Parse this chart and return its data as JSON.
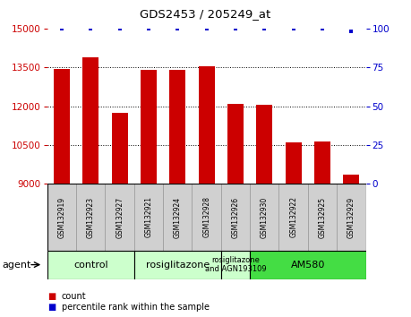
{
  "title": "GDS2453 / 205249_at",
  "samples": [
    "GSM132919",
    "GSM132923",
    "GSM132927",
    "GSM132921",
    "GSM132924",
    "GSM132928",
    "GSM132926",
    "GSM132930",
    "GSM132922",
    "GSM132925",
    "GSM132929"
  ],
  "counts": [
    13450,
    13900,
    11750,
    13400,
    13400,
    13550,
    12100,
    12050,
    10600,
    10650,
    9350
  ],
  "percentiles": [
    100,
    100,
    100,
    100,
    100,
    100,
    100,
    100,
    100,
    100,
    98
  ],
  "ylim_left": [
    9000,
    15000
  ],
  "ylim_right": [
    0,
    100
  ],
  "yticks_left": [
    9000,
    10500,
    12000,
    13500,
    15000
  ],
  "yticks_right": [
    0,
    25,
    50,
    75,
    100
  ],
  "bar_color": "#cc0000",
  "dot_color": "#0000cc",
  "bar_width": 0.55,
  "group_labels": [
    "control",
    "rosiglitazone",
    "rosiglitazone\nand AGN193109",
    "AM580"
  ],
  "group_indices": [
    [
      0,
      1,
      2
    ],
    [
      3,
      4,
      5
    ],
    [
      6
    ],
    [
      7,
      8,
      9,
      10
    ]
  ],
  "group_colors": [
    "#ccffcc",
    "#ccffcc",
    "#ccffcc",
    "#44dd44"
  ],
  "agent_label": "agent",
  "legend_count_label": "count",
  "legend_pct_label": "percentile rank within the sample",
  "sample_box_color": "#d0d0d0",
  "grid_color": "black",
  "grid_linestyle": "dotted",
  "grid_linewidth": 0.7
}
